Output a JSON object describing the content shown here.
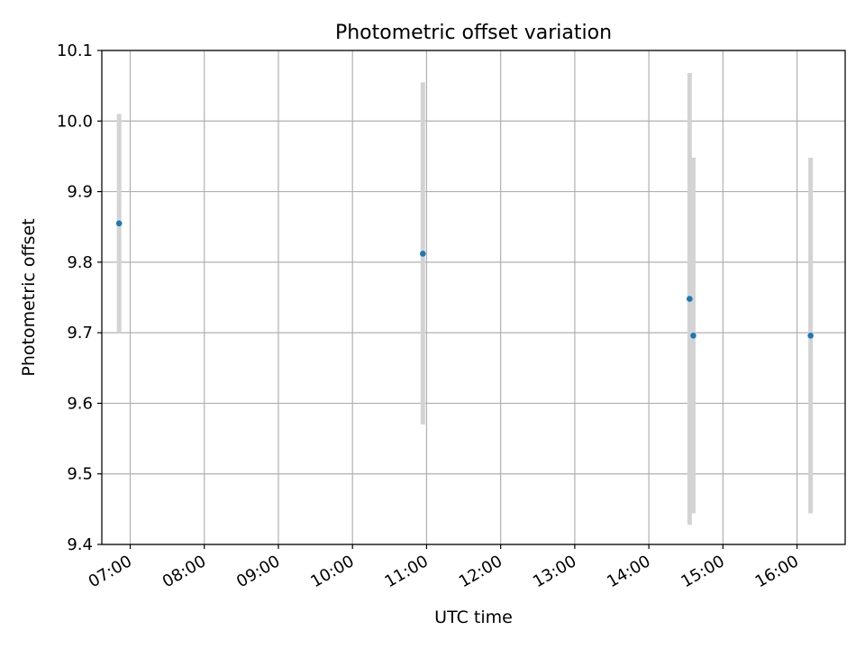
{
  "chart_data": {
    "type": "scatter",
    "title": "Photometric offset variation",
    "xlabel": "UTC time",
    "ylabel": "Photometric offset",
    "x_scale": "time",
    "xlim": [
      "06:37",
      "16:39"
    ],
    "ylim": [
      9.4,
      10.1
    ],
    "x_ticks": [
      "07:00",
      "08:00",
      "09:00",
      "10:00",
      "11:00",
      "12:00",
      "13:00",
      "14:00",
      "15:00",
      "16:00"
    ],
    "y_ticks": [
      "9.4",
      "9.5",
      "9.6",
      "9.7",
      "9.8",
      "9.9",
      "10.0",
      "10.1"
    ],
    "grid": true,
    "legend": "none",
    "point_color": "#1f77b4",
    "errorbar_color": "#d3d3d3",
    "points": [
      {
        "x": "06:51",
        "y": 9.855,
        "y_low": 9.7,
        "y_high": 10.01
      },
      {
        "x": "10:57",
        "y": 9.812,
        "y_low": 9.57,
        "y_high": 10.055
      },
      {
        "x": "14:33",
        "y": 9.748,
        "y_low": 9.428,
        "y_high": 10.068
      },
      {
        "x": "14:36",
        "y": 9.696,
        "y_low": 9.444,
        "y_high": 9.948
      },
      {
        "x": "16:11",
        "y": 9.696,
        "y_low": 9.444,
        "y_high": 9.948
      }
    ]
  }
}
